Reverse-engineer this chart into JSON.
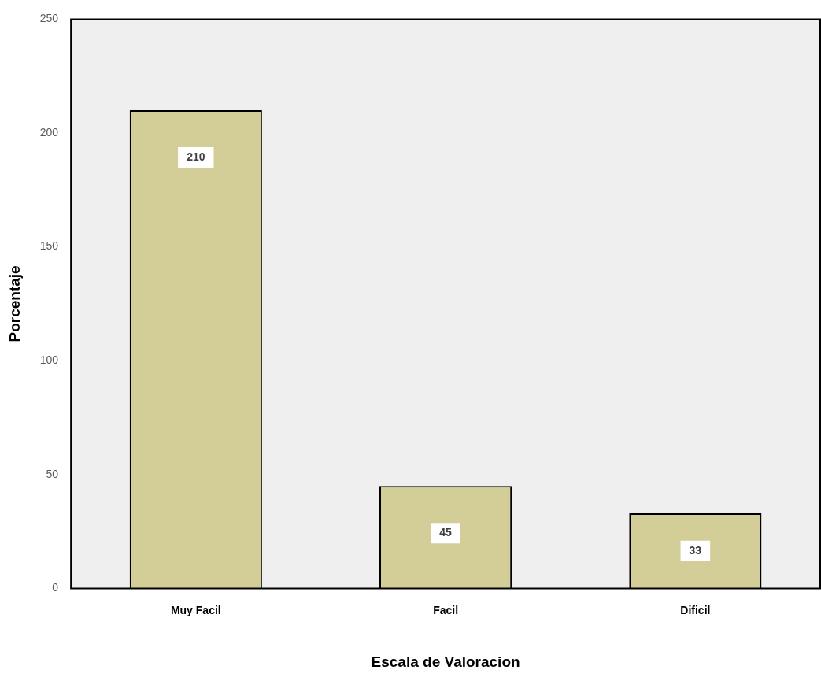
{
  "chart_data": {
    "type": "bar",
    "xlabel": "Escala de Valoracion",
    "ylabel": "Porcentaje",
    "categories": [
      "Muy Facil",
      "Facil",
      "Dificil"
    ],
    "values": [
      210,
      45,
      33
    ],
    "color": "#d3cd98",
    "ylim": [
      0,
      250
    ],
    "yticks": [
      0,
      50,
      100,
      150,
      200,
      250
    ],
    "grid": false,
    "legend": false,
    "data_labels": true
  }
}
